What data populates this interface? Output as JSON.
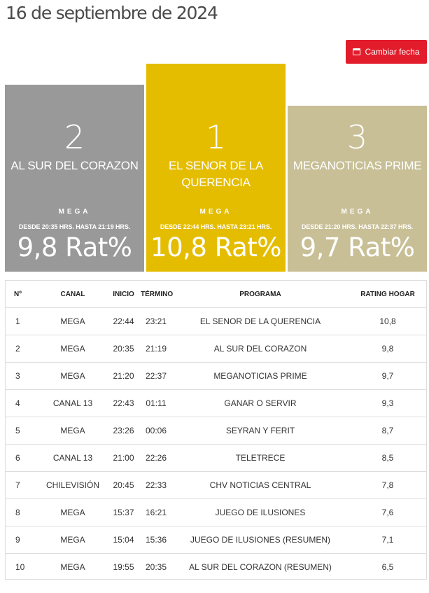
{
  "header": {
    "date": "16 de septiembre de 2024",
    "change_date_label": "Cambiar fecha"
  },
  "podium": [
    {
      "rank": "2",
      "program": "AL SUR DEL CORAZON",
      "channel": "MEGA",
      "schedule": "DESDE 20:35 HRS. HASTA 21:19 HRS.",
      "rating": "9,8 Rat%",
      "color": "#999999"
    },
    {
      "rank": "1",
      "program": "EL SENOR DE LA QUERENCIA",
      "channel": "MEGA",
      "schedule": "DESDE 22:44 HRS. HASTA 23:21 HRS.",
      "rating": "10,8 Rat%",
      "color": "#e5bd00"
    },
    {
      "rank": "3",
      "program": "MEGANOTICIAS PRIME",
      "channel": "MEGA",
      "schedule": "DESDE 21:20 HRS. HASTA 22:37 HRS.",
      "rating": "9,7 Rat%",
      "color": "#c8bf96"
    }
  ],
  "table": {
    "headers": [
      "Nº",
      "CANAL",
      "INICIO",
      "TÉRMINO",
      "PROGRAMA",
      "RATING HOGAR"
    ],
    "rows": [
      {
        "n": "1",
        "canal": "MEGA",
        "inicio": "22:44",
        "termino": "23:21",
        "programa": "EL SENOR DE LA QUERENCIA",
        "rating": "10,8"
      },
      {
        "n": "2",
        "canal": "MEGA",
        "inicio": "20:35",
        "termino": "21:19",
        "programa": "AL SUR DEL CORAZON",
        "rating": "9,8"
      },
      {
        "n": "3",
        "canal": "MEGA",
        "inicio": "21:20",
        "termino": "22:37",
        "programa": "MEGANOTICIAS PRIME",
        "rating": "9,7"
      },
      {
        "n": "4",
        "canal": "CANAL 13",
        "inicio": "22:43",
        "termino": "01:11",
        "programa": "GANAR O SERVIR",
        "rating": "9,3"
      },
      {
        "n": "5",
        "canal": "MEGA",
        "inicio": "23:26",
        "termino": "00:06",
        "programa": "SEYRAN Y FERIT",
        "rating": "8,7"
      },
      {
        "n": "6",
        "canal": "CANAL 13",
        "inicio": "21:00",
        "termino": "22:26",
        "programa": "TELETRECE",
        "rating": "8,5"
      },
      {
        "n": "7",
        "canal": "CHILEVISIÓN",
        "inicio": "20:45",
        "termino": "22:33",
        "programa": "CHV NOTICIAS CENTRAL",
        "rating": "7,8"
      },
      {
        "n": "8",
        "canal": "MEGA",
        "inicio": "15:37",
        "termino": "16:21",
        "programa": "JUEGO DE ILUSIONES",
        "rating": "7,6"
      },
      {
        "n": "9",
        "canal": "MEGA",
        "inicio": "15:04",
        "termino": "15:36",
        "programa": "JUEGO DE ILUSIONES (RESUMEN)",
        "rating": "7,1"
      },
      {
        "n": "10",
        "canal": "MEGA",
        "inicio": "19:55",
        "termino": "20:35",
        "programa": "AL SUR DEL CORAZON (RESUMEN)",
        "rating": "6,5"
      }
    ]
  },
  "colors": {
    "accent_red": "#e21c2a",
    "gold": "#e5bd00",
    "silver": "#999999",
    "bronze": "#c8bf96"
  },
  "icons": {
    "change_date": "calendar-icon"
  }
}
